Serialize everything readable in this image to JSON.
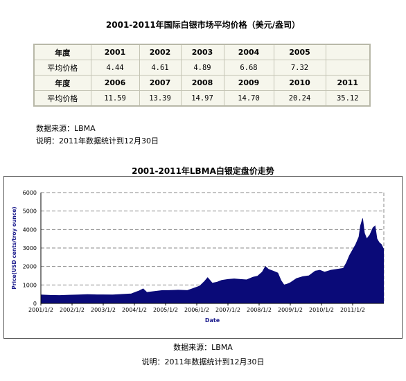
{
  "page": {
    "table_title": "2001-2011年国际白银市场平均价格（美元/盎司）",
    "chart_title": "2001-2011年LBMA白银定盘价走势"
  },
  "avg_table": {
    "header_label": "年度",
    "row_label": "平均价格",
    "years_row1": [
      "2001",
      "2002",
      "2003",
      "2004",
      "2005",
      ""
    ],
    "values_row1": [
      "4.44",
      "4.61",
      "4.89",
      "6.68",
      "7.32",
      ""
    ],
    "years_row2": [
      "2006",
      "2007",
      "2008",
      "2009",
      "2010",
      "2011"
    ],
    "values_row2": [
      "11.59",
      "13.39",
      "14.97",
      "14.70",
      "20.24",
      "35.12"
    ]
  },
  "notes": {
    "source_top": "数据来源：LBMA",
    "remark_top": "说明：2011年数据统计到12月30日",
    "source_bottom": "数据来源：LBMA",
    "remark_bottom": "说明：2011年数据统计到12月30日"
  },
  "chart_data": {
    "type": "area",
    "title": "",
    "xlabel": "Date",
    "ylabel": "Price(USD cents/troy ounce)",
    "ylim": [
      0,
      6000
    ],
    "yticks": [
      "0",
      "1000",
      "2000",
      "3000",
      "4000",
      "5000",
      "6000"
    ],
    "xticks": [
      "2001/1/2",
      "2002/1/2",
      "2003/1/2",
      "2004/1/2",
      "2005/1/2",
      "2006/1/2",
      "2007/1/2",
      "2008/1/2",
      "2009/1/2",
      "2010/1/2",
      "2011/1/2"
    ],
    "grid": true,
    "fill_color": "#0a0a78",
    "series": [
      {
        "x": [
          2001.0,
          2001.3,
          2001.6,
          2001.9,
          2002.2,
          2002.5,
          2002.8,
          2003.0,
          2003.3,
          2003.6,
          2003.9,
          2004.05,
          2004.15,
          2004.28,
          2004.4,
          2004.6,
          2004.9,
          2005.1,
          2005.4,
          2005.7,
          2005.95,
          2006.1,
          2006.25,
          2006.35,
          2006.5,
          2006.65,
          2006.8,
          2007.0,
          2007.2,
          2007.4,
          2007.6,
          2007.8,
          2007.95,
          2008.1,
          2008.2,
          2008.3,
          2008.45,
          2008.6,
          2008.7,
          2008.8,
          2008.9,
          2009.0,
          2009.2,
          2009.4,
          2009.6,
          2009.8,
          2009.95,
          2010.1,
          2010.3,
          2010.5,
          2010.7,
          2010.8,
          2010.9,
          2011.0,
          2011.1,
          2011.2,
          2011.25,
          2011.32,
          2011.38,
          2011.45,
          2011.55,
          2011.65,
          2011.72,
          2011.78,
          2011.85,
          2011.92,
          2011.99
        ],
        "y": [
          460,
          440,
          430,
          450,
          460,
          480,
          470,
          470,
          460,
          490,
          520,
          620,
          680,
          790,
          600,
          640,
          700,
          700,
          720,
          700,
          850,
          950,
          1200,
          1400,
          1100,
          1150,
          1250,
          1300,
          1330,
          1300,
          1280,
          1420,
          1480,
          1700,
          2000,
          1850,
          1750,
          1650,
          1250,
          1000,
          1050,
          1120,
          1350,
          1450,
          1500,
          1750,
          1800,
          1700,
          1800,
          1850,
          1900,
          2200,
          2600,
          2900,
          3200,
          3600,
          4200,
          4600,
          3800,
          3500,
          3700,
          4100,
          4200,
          3500,
          3300,
          3200,
          2950
        ]
      }
    ]
  }
}
